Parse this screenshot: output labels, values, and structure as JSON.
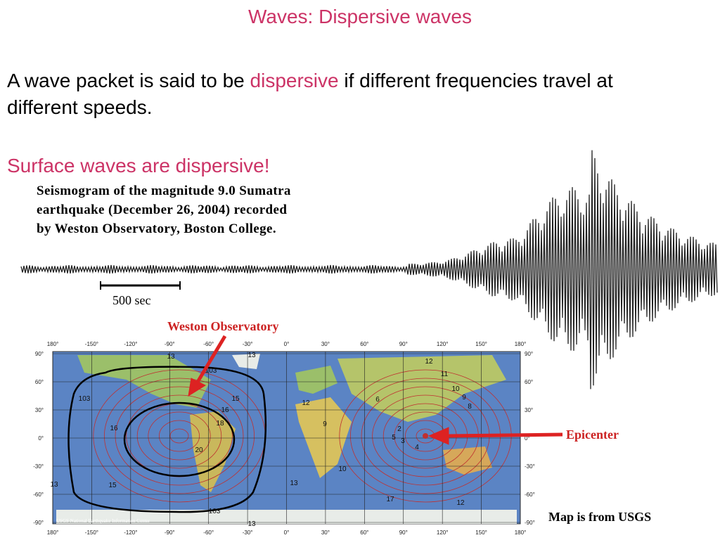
{
  "title": "Waves: Dispersive waves",
  "body": {
    "before": "A wave packet is said to be ",
    "highlight": "dispersive",
    "after": " if different frequencies travel at different speeds."
  },
  "emphasis": "Surface waves are dispersive!",
  "seismogram": {
    "caption": [
      "Seismogram of the magnitude 9.0 Sumatra",
      "earthquake (December 26, 2004) recorded",
      "by Weston Observatory, Boston College."
    ],
    "scale_label": "500 sec"
  },
  "map": {
    "observatory": "Weston Observatory",
    "epicenter": "Epicenter",
    "source": "Map is from USGS",
    "credit": "USGS National Earthquake Information Center",
    "lon_labels": [
      "180°",
      "-150°",
      "-120°",
      "-90°",
      "-60°",
      "-30°",
      "0°",
      "30°",
      "60°",
      "90°",
      "120°",
      "150°",
      "180°"
    ],
    "lat_labels": [
      "90°",
      "60°",
      "30°",
      "0°",
      "-30°",
      "-60°",
      "-90°"
    ],
    "contour_labels": [
      "13",
      "13",
      "103",
      "103",
      "15",
      "16",
      "16",
      "18",
      "20",
      "12",
      "9",
      "10",
      "13",
      "15",
      "13",
      "17",
      "12",
      "12",
      "11",
      "10",
      "9",
      "8",
      "6",
      "5",
      "4",
      "3",
      "2",
      "103",
      "13"
    ]
  }
}
